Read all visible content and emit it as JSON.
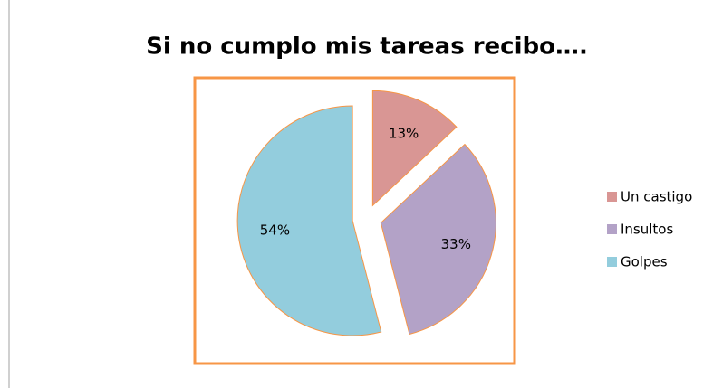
{
  "chart_data": {
    "type": "pie",
    "title": "Si no cumplo mis tareas recibo….",
    "categories": [
      "Un castigo",
      "Insultos",
      "Golpes"
    ],
    "values": [
      13,
      33,
      54
    ],
    "value_labels": [
      "13%",
      "33%",
      "54%"
    ],
    "colors": [
      "#d99694",
      "#b3a2c7",
      "#93cddd"
    ],
    "legend": "right"
  }
}
